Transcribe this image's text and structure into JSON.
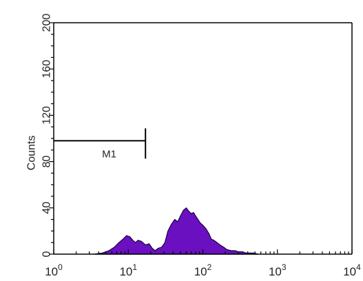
{
  "chart_data": {
    "type": "area",
    "title": "",
    "xlabel": "",
    "ylabel": "Counts",
    "xscale": "log",
    "xlim": [
      1,
      10000
    ],
    "ylim": [
      0,
      200
    ],
    "grid": false,
    "fill_color": "#6a10c0",
    "x_tick_labels": [
      {
        "base": "10",
        "exp": "0",
        "value": 1
      },
      {
        "base": "10",
        "exp": "1",
        "value": 10
      },
      {
        "base": "10",
        "exp": "2",
        "value": 100
      },
      {
        "base": "10",
        "exp": "3",
        "value": 1000
      },
      {
        "base": "10",
        "exp": "4",
        "value": 10000
      }
    ],
    "y_tick_labels": [
      "0",
      "40",
      "80",
      "120",
      "160",
      "200"
    ],
    "y_ticks": [
      0,
      40,
      80,
      120,
      160,
      200
    ],
    "marker": {
      "label": "M1",
      "x_start": 1,
      "x_end": 17,
      "y": 98
    },
    "series": [
      {
        "x": [
          3.5,
          4.5,
          5.5,
          6.5,
          7.5,
          8.5,
          9.5,
          10.5,
          11.5,
          12.5,
          13.5,
          15,
          17,
          19,
          21,
          23,
          25,
          28,
          31,
          34,
          38,
          42,
          46,
          50,
          55,
          60,
          65,
          70,
          75,
          80,
          86,
          92,
          100,
          110,
          120,
          130,
          140,
          155,
          170,
          190,
          210,
          240,
          270,
          300,
          340,
          380,
          430,
          480,
          550
        ],
        "y": [
          0,
          1,
          3,
          6,
          10,
          13,
          16,
          15,
          12,
          10,
          12,
          11,
          8,
          9,
          5,
          3,
          5,
          6,
          10,
          20,
          26,
          30,
          28,
          33,
          38,
          40,
          37,
          35,
          36,
          33,
          30,
          27,
          25,
          22,
          18,
          13,
          12,
          10,
          8,
          6,
          4,
          3,
          3,
          2,
          2,
          1,
          1,
          1,
          0
        ]
      }
    ]
  }
}
